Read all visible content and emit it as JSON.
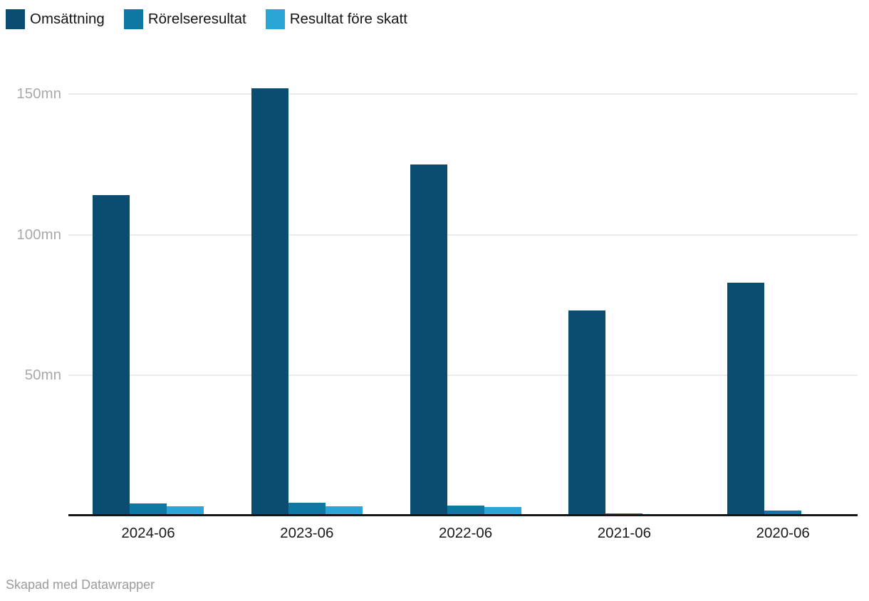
{
  "chart_data": {
    "type": "bar",
    "title": "",
    "xlabel": "",
    "ylabel": "",
    "unit": "mn",
    "categories": [
      "2024-06",
      "2023-06",
      "2022-06",
      "2021-06",
      "2020-06"
    ],
    "series": [
      {
        "name": "Omsättning",
        "color": "#0a4d70",
        "values": [
          114,
          152,
          125,
          73,
          83
        ]
      },
      {
        "name": "Rörelseresultat",
        "color": "#0d79a3",
        "values": [
          4.5,
          4.7,
          3.8,
          1.0,
          2.0
        ]
      },
      {
        "name": "Resultat före skatt",
        "color": "#2aa5d6",
        "values": [
          3.5,
          3.6,
          3.2,
          0,
          0
        ]
      }
    ],
    "y_ticks": [
      {
        "value": 50,
        "label": "50mn"
      },
      {
        "value": 100,
        "label": "100mn"
      },
      {
        "value": 150,
        "label": "150mn"
      }
    ],
    "ylim": [
      0,
      160
    ],
    "grid": "horizontal",
    "legend_position": "top-left"
  },
  "footer": {
    "attribution": "Skapad med Datawrapper"
  },
  "colors": {
    "background": "#ffffff",
    "axis_line": "#161616",
    "gridline": "#ebebeb",
    "tick_label": "#a9a9a9",
    "category_label": "#1a1a1a",
    "legend_label": "#141414"
  }
}
